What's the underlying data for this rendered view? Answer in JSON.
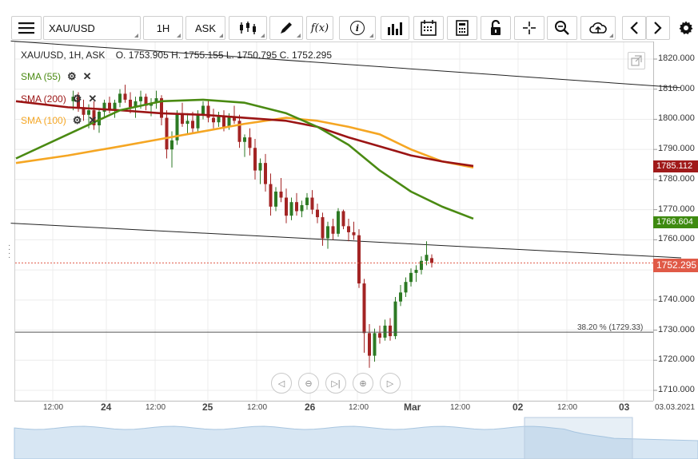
{
  "toolbar": {
    "symbol": "XAU/USD",
    "timeframe": "1H",
    "price_type": "ASK",
    "function_label": "f(x)",
    "info_label": "i",
    "icons": [
      "menu-icon",
      "candlestick-icon",
      "pencil-icon",
      "function-icon",
      "info-icon",
      "bar-chart-icon",
      "calendar-icon",
      "calculator-icon",
      "lock-icon",
      "crosshair-icon",
      "zoom-icon",
      "cloud-upload-icon",
      "chevron-left-icon",
      "chevron-right-icon",
      "gear-icon"
    ]
  },
  "ohlc": {
    "symbol_line": "XAU/USD, 1H, ASK",
    "open": "O. 1753.905",
    "high": "H. 1755.155",
    "low": "L. 1750.795",
    "close": "C. 1752.295"
  },
  "legend": [
    {
      "label": "SMA (55)",
      "color": "#4a8a12"
    },
    {
      "label": "SMA (200)",
      "color": "#9b1414"
    },
    {
      "label": "SMA (100)",
      "color": "#f5a623"
    }
  ],
  "fib_label": "38.20 % (1729.33)",
  "price_badges": [
    {
      "value": "1785.112",
      "color": "#a01a1a"
    },
    {
      "value": "1766.604",
      "color": "#3e8a10"
    },
    {
      "value": "1752.295",
      "color": "#e05a47"
    }
  ],
  "nav_controls": [
    "◁",
    "⊖",
    "▷|",
    "⊕",
    "▷"
  ],
  "time_labels": [
    {
      "text": "12:00",
      "major": false
    },
    {
      "text": "24",
      "major": true
    },
    {
      "text": "12:00",
      "major": false
    },
    {
      "text": "25",
      "major": true
    },
    {
      "text": "12:00",
      "major": false
    },
    {
      "text": "26",
      "major": true
    },
    {
      "text": "12:00",
      "major": false
    },
    {
      "text": "Mar",
      "major": true
    },
    {
      "text": "12:00",
      "major": false
    },
    {
      "text": "02",
      "major": true
    },
    {
      "text": "12:00",
      "major": false
    },
    {
      "text": "03",
      "major": true
    },
    {
      "text": "03.03.2021",
      "major": false
    }
  ],
  "chart_data": {
    "type": "candlestick",
    "ylim": [
      1706,
      1826
    ],
    "y_ticks": [
      1710,
      1720,
      1730,
      1740,
      1750,
      1760,
      1770,
      1780,
      1790,
      1800,
      1810,
      1820
    ],
    "y_tick_labels": [
      "1710.000",
      "1720.000",
      "1730.000",
      "1740.000",
      "1750.000",
      "1760.000",
      "1770.000",
      "1780.000",
      "1790.000",
      "1800.000",
      "1810.000",
      "1820.000"
    ],
    "last_price": 1752.295,
    "fib_level": 1729.33,
    "candles": [
      [
        1806.0,
        1809.5,
        1803.0,
        1807.5
      ],
      [
        1807.5,
        1809.0,
        1802.5,
        1804.0
      ],
      [
        1804.0,
        1806.5,
        1799.5,
        1801.5
      ],
      [
        1801.5,
        1805.0,
        1797.0,
        1803.0
      ],
      [
        1803.0,
        1806.0,
        1796.5,
        1798.0
      ],
      [
        1798.0,
        1803.5,
        1795.5,
        1802.5
      ],
      [
        1802.5,
        1806.5,
        1800.5,
        1805.5
      ],
      [
        1805.5,
        1807.5,
        1802.0,
        1803.0
      ],
      [
        1803.0,
        1806.5,
        1800.5,
        1805.5
      ],
      [
        1805.5,
        1810.0,
        1804.0,
        1808.5
      ],
      [
        1808.5,
        1811.5,
        1805.5,
        1806.5
      ],
      [
        1806.5,
        1809.0,
        1802.0,
        1804.0
      ],
      [
        1804.0,
        1807.5,
        1800.5,
        1806.0
      ],
      [
        1806.0,
        1809.5,
        1803.5,
        1807.5
      ],
      [
        1807.5,
        1808.5,
        1803.0,
        1804.5
      ],
      [
        1804.5,
        1807.0,
        1801.0,
        1805.5
      ],
      [
        1805.5,
        1809.5,
        1803.5,
        1807.0
      ],
      [
        1807.0,
        1808.0,
        1798.0,
        1800.5
      ],
      [
        1800.5,
        1803.0,
        1787.0,
        1790.0
      ],
      [
        1790.0,
        1796.0,
        1784.0,
        1793.0
      ],
      [
        1793.0,
        1803.0,
        1791.5,
        1802.0
      ],
      [
        1802.0,
        1805.5,
        1797.5,
        1798.5
      ],
      [
        1798.5,
        1802.0,
        1795.0,
        1799.5
      ],
      [
        1799.5,
        1802.5,
        1795.5,
        1797.0
      ],
      [
        1797.0,
        1803.0,
        1796.0,
        1801.5
      ],
      [
        1801.5,
        1806.0,
        1800.0,
        1804.5
      ],
      [
        1804.5,
        1806.5,
        1799.0,
        1800.5
      ],
      [
        1800.5,
        1803.5,
        1797.0,
        1799.0
      ],
      [
        1799.0,
        1802.5,
        1797.5,
        1801.0
      ],
      [
        1801.0,
        1803.0,
        1796.0,
        1797.5
      ],
      [
        1797.5,
        1802.0,
        1796.5,
        1801.0
      ],
      [
        1801.0,
        1804.5,
        1798.5,
        1799.5
      ],
      [
        1799.5,
        1801.5,
        1790.5,
        1792.5
      ],
      [
        1792.5,
        1795.0,
        1787.5,
        1794.0
      ],
      [
        1794.0,
        1797.0,
        1788.0,
        1790.5
      ],
      [
        1790.5,
        1793.5,
        1780.0,
        1783.0
      ],
      [
        1783.0,
        1787.0,
        1778.5,
        1785.5
      ],
      [
        1785.5,
        1788.5,
        1776.0,
        1778.5
      ],
      [
        1778.5,
        1782.0,
        1768.0,
        1771.0
      ],
      [
        1771.0,
        1777.5,
        1769.5,
        1776.0
      ],
      [
        1776.0,
        1780.5,
        1772.5,
        1774.0
      ],
      [
        1774.0,
        1777.0,
        1765.5,
        1768.0
      ],
      [
        1768.0,
        1774.0,
        1766.5,
        1772.5
      ],
      [
        1772.5,
        1775.5,
        1768.0,
        1769.5
      ],
      [
        1769.5,
        1773.0,
        1767.5,
        1771.5
      ],
      [
        1771.5,
        1775.5,
        1770.0,
        1774.0
      ],
      [
        1774.0,
        1776.5,
        1768.5,
        1770.0
      ],
      [
        1770.0,
        1772.0,
        1765.5,
        1767.5
      ],
      [
        1767.5,
        1769.0,
        1758.0,
        1760.5
      ],
      [
        1760.5,
        1766.0,
        1757.0,
        1764.5
      ],
      [
        1764.5,
        1767.0,
        1760.0,
        1762.0
      ],
      [
        1762.0,
        1770.5,
        1761.0,
        1769.5
      ],
      [
        1769.5,
        1770.0,
        1763.5,
        1764.5
      ],
      [
        1764.5,
        1767.0,
        1759.5,
        1762.5
      ],
      [
        1762.5,
        1766.0,
        1760.0,
        1761.5
      ],
      [
        1761.5,
        1763.5,
        1744.0,
        1745.5
      ],
      [
        1745.5,
        1747.0,
        1722.5,
        1729.0
      ],
      [
        1729.0,
        1732.0,
        1717.5,
        1721.5
      ],
      [
        1721.5,
        1730.5,
        1719.5,
        1729.0
      ],
      [
        1729.0,
        1731.5,
        1725.5,
        1727.5
      ],
      [
        1727.5,
        1733.5,
        1726.5,
        1731.5
      ],
      [
        1731.5,
        1734.0,
        1726.5,
        1728.0
      ],
      [
        1728.0,
        1741.0,
        1727.0,
        1739.5
      ],
      [
        1739.5,
        1745.0,
        1738.0,
        1742.5
      ],
      [
        1742.5,
        1747.5,
        1741.0,
        1746.0
      ],
      [
        1746.0,
        1750.5,
        1744.5,
        1749.0
      ],
      [
        1749.0,
        1751.5,
        1746.0,
        1750.0
      ],
      [
        1750.0,
        1754.5,
        1748.5,
        1753.0
      ],
      [
        1753.0,
        1759.5,
        1751.5,
        1755.0
      ],
      [
        1753.905,
        1755.155,
        1750.795,
        1752.295
      ]
    ],
    "sma_55": [
      [
        0,
        1787.0
      ],
      [
        10,
        1795.0
      ],
      [
        20,
        1803.0
      ],
      [
        28,
        1806.0
      ],
      [
        36,
        1806.5
      ],
      [
        44,
        1805.5
      ],
      [
        52,
        1802.0
      ],
      [
        58,
        1797.5
      ],
      [
        64,
        1791.5
      ],
      [
        70,
        1783.0
      ],
      [
        76,
        1776.0
      ],
      [
        82,
        1771.0
      ],
      [
        88,
        1767.0
      ]
    ],
    "sma_200": [
      [
        0,
        1806.0
      ],
      [
        10,
        1804.0
      ],
      [
        20,
        1803.0
      ],
      [
        28,
        1802.0
      ],
      [
        36,
        1801.5
      ],
      [
        44,
        1800.5
      ],
      [
        52,
        1799.5
      ],
      [
        58,
        1797.5
      ],
      [
        64,
        1794.0
      ],
      [
        70,
        1791.0
      ],
      [
        76,
        1788.0
      ],
      [
        82,
        1786.0
      ],
      [
        88,
        1784.5
      ]
    ],
    "sma_100": [
      [
        0,
        1785.5
      ],
      [
        10,
        1788.0
      ],
      [
        20,
        1791.0
      ],
      [
        28,
        1793.5
      ],
      [
        36,
        1796.0
      ],
      [
        44,
        1798.5
      ],
      [
        52,
        1800.5
      ],
      [
        58,
        1799.5
      ],
      [
        64,
        1797.5
      ],
      [
        70,
        1795.0
      ],
      [
        76,
        1790.0
      ],
      [
        82,
        1786.0
      ],
      [
        88,
        1784.0
      ]
    ],
    "trend_upper": [
      [
        -1,
        1826.0
      ],
      [
        128,
        1810.5
      ]
    ],
    "trend_lower": [
      [
        -1,
        1765.5
      ],
      [
        128,
        1754.0
      ]
    ]
  }
}
